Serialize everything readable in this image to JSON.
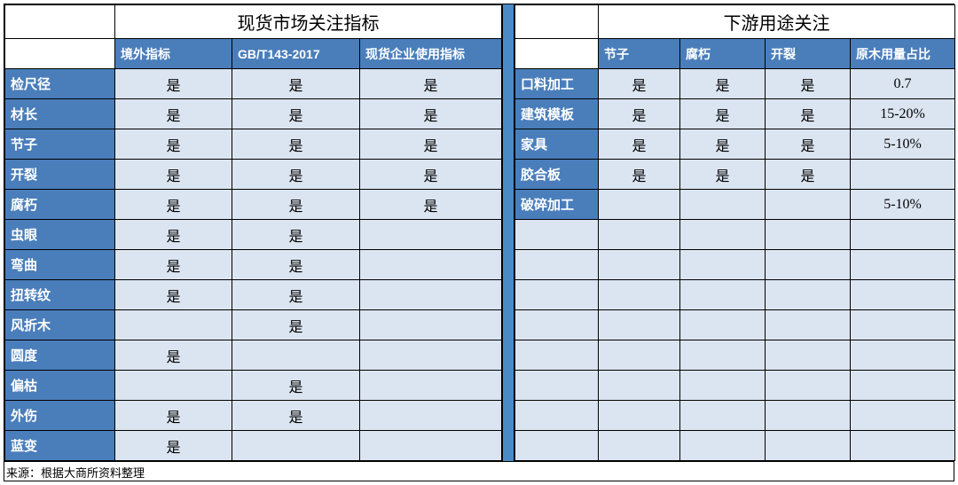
{
  "colors": {
    "header_blue": "#4a7ebb",
    "divider_blue": "#4a8bc7",
    "cell_fill": "#dbe5f1",
    "border": "#000000",
    "bg": "#ffffff",
    "header_text": "#ffffff"
  },
  "left": {
    "title": "现货市场关注指标",
    "columns": [
      "境外指标",
      "GB/T143-2017",
      "现货企业使用指标"
    ],
    "rows": [
      {
        "label": "检尺径",
        "cells": [
          "是",
          "是",
          "是"
        ]
      },
      {
        "label": "材长",
        "cells": [
          "是",
          "是",
          "是"
        ]
      },
      {
        "label": "节子",
        "cells": [
          "是",
          "是",
          "是"
        ]
      },
      {
        "label": "开裂",
        "cells": [
          "是",
          "是",
          "是"
        ]
      },
      {
        "label": "腐朽",
        "cells": [
          "是",
          "是",
          "是"
        ]
      },
      {
        "label": "虫眼",
        "cells": [
          "是",
          "是",
          ""
        ]
      },
      {
        "label": "弯曲",
        "cells": [
          "是",
          "是",
          ""
        ]
      },
      {
        "label": "扭转纹",
        "cells": [
          "是",
          "是",
          ""
        ]
      },
      {
        "label": "风折木",
        "cells": [
          "",
          "是",
          ""
        ]
      },
      {
        "label": "圆度",
        "cells": [
          "是",
          "",
          ""
        ]
      },
      {
        "label": "偏枯",
        "cells": [
          "",
          "是",
          ""
        ]
      },
      {
        "label": "外伤",
        "cells": [
          "是",
          "是",
          ""
        ]
      },
      {
        "label": "蓝变",
        "cells": [
          "是",
          "",
          ""
        ]
      }
    ]
  },
  "right": {
    "title": "下游用途关注",
    "columns": [
      "节子",
      "腐朽",
      "开裂",
      "原木用量占比"
    ],
    "rows": [
      {
        "label": "口料加工",
        "cells": [
          "是",
          "是",
          "是",
          "0.7"
        ]
      },
      {
        "label": "建筑模板",
        "cells": [
          "是",
          "是",
          "是",
          "15-20%"
        ]
      },
      {
        "label": "家具",
        "cells": [
          "是",
          "是",
          "是",
          "5-10%"
        ]
      },
      {
        "label": "胶合板",
        "cells": [
          "是",
          "是",
          "是",
          ""
        ]
      },
      {
        "label": "破碎加工",
        "cells": [
          "",
          "",
          "",
          "5-10%"
        ]
      },
      {
        "label": "",
        "cells": [
          "",
          "",
          "",
          ""
        ]
      },
      {
        "label": "",
        "cells": [
          "",
          "",
          "",
          ""
        ]
      },
      {
        "label": "",
        "cells": [
          "",
          "",
          "",
          ""
        ]
      },
      {
        "label": "",
        "cells": [
          "",
          "",
          "",
          ""
        ]
      },
      {
        "label": "",
        "cells": [
          "",
          "",
          "",
          ""
        ]
      },
      {
        "label": "",
        "cells": [
          "",
          "",
          "",
          ""
        ]
      },
      {
        "label": "",
        "cells": [
          "",
          "",
          "",
          ""
        ]
      },
      {
        "label": "",
        "cells": [
          "",
          "",
          "",
          ""
        ]
      }
    ]
  },
  "source": "来源：根据大商所资料整理"
}
